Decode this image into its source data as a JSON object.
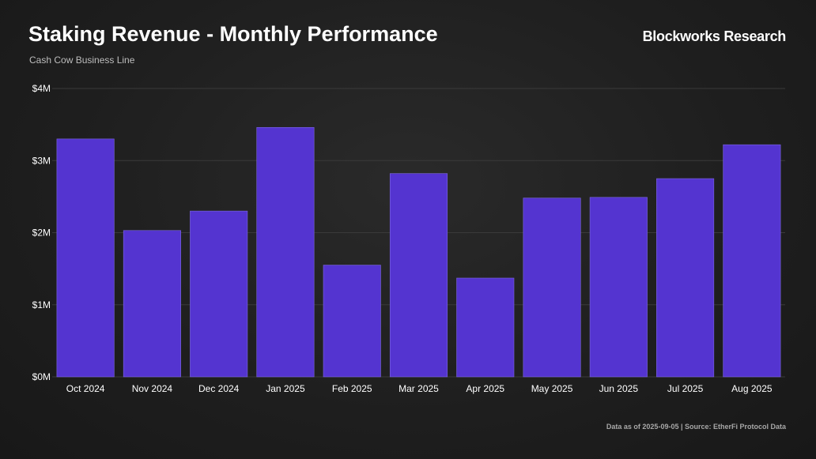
{
  "header": {
    "title": "Staking Revenue - Monthly Performance",
    "subtitle": "Cash Cow Business Line",
    "brand": "Blockworks Research"
  },
  "footer": {
    "note": "Data as of 2025-09-05 | Source: EtherFi Protocol Data"
  },
  "chart_data": {
    "type": "bar",
    "title": "Staking Revenue - Monthly Performance",
    "subtitle": "Cash Cow Business Line",
    "categories": [
      "Oct 2024",
      "Nov 2024",
      "Dec 2024",
      "Jan 2025",
      "Feb 2025",
      "Mar 2025",
      "Apr 2025",
      "May 2025",
      "Jun 2025",
      "Jul 2025",
      "Aug 2025"
    ],
    "values": [
      3300000,
      2030000,
      2300000,
      3460000,
      1550000,
      2820000,
      1370000,
      2480000,
      2490000,
      2750000,
      3220000
    ],
    "ylim": [
      0,
      4000000
    ],
    "yticks": [
      0,
      1000000,
      2000000,
      3000000,
      4000000
    ],
    "ytick_labels": [
      "$0M",
      "$1M",
      "$2M",
      "$3M",
      "$4M"
    ],
    "xlabel": "",
    "ylabel": "",
    "grid": true,
    "colors": {
      "bar": "#5434d0",
      "grid": "#3a3a3a"
    }
  }
}
